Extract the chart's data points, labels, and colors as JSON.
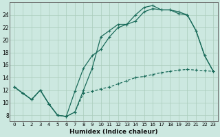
{
  "xlabel": "Humidex (Indice chaleur)",
  "ylabel": "",
  "bg_color": "#cce8e0",
  "grid_color": "#aaccbb",
  "line_color": "#1a6b5a",
  "xlim": [
    -0.5,
    23.5
  ],
  "ylim": [
    7,
    26
  ],
  "xticks": [
    0,
    1,
    2,
    3,
    4,
    5,
    6,
    7,
    8,
    9,
    10,
    11,
    12,
    13,
    14,
    15,
    16,
    17,
    18,
    19,
    20,
    21,
    22,
    23
  ],
  "yticks": [
    8,
    10,
    12,
    14,
    16,
    18,
    20,
    22,
    24
  ],
  "line1_x": [
    0,
    1,
    2,
    3,
    4,
    5,
    6,
    7,
    8,
    9,
    10,
    11,
    12,
    13,
    14,
    15,
    16,
    17,
    18,
    19,
    20,
    21,
    22,
    23
  ],
  "line1_y": [
    12.5,
    11.5,
    10.5,
    12.0,
    9.8,
    8.0,
    7.8,
    8.5,
    12.0,
    15.5,
    20.5,
    21.5,
    22.5,
    22.5,
    24.0,
    25.2,
    25.5,
    24.8,
    24.8,
    24.5,
    24.0,
    21.5,
    17.5,
    15.0
  ],
  "line2_x": [
    0,
    1,
    2,
    3,
    4,
    5,
    6,
    7,
    8,
    9,
    10,
    11,
    12,
    13,
    14,
    15,
    16,
    17,
    18,
    19,
    20,
    21,
    22,
    23
  ],
  "line2_y": [
    12.5,
    11.5,
    10.5,
    12.0,
    9.8,
    8.0,
    7.8,
    11.8,
    15.5,
    17.5,
    18.5,
    20.5,
    22.0,
    22.5,
    23.0,
    24.5,
    25.0,
    24.8,
    24.8,
    24.2,
    24.0,
    21.5,
    17.5,
    15.0
  ],
  "line3_x": [
    0,
    1,
    2,
    3,
    4,
    5,
    6,
    7,
    8,
    9,
    10,
    11,
    12,
    13,
    14,
    15,
    16,
    17,
    18,
    19,
    20,
    21,
    22,
    23
  ],
  "line3_y": [
    12.5,
    11.5,
    10.5,
    12.0,
    9.8,
    8.0,
    7.8,
    8.5,
    11.5,
    11.8,
    12.2,
    12.5,
    13.0,
    13.5,
    14.0,
    14.2,
    14.5,
    14.8,
    15.0,
    15.2,
    15.3,
    15.2,
    15.1,
    15.0
  ]
}
